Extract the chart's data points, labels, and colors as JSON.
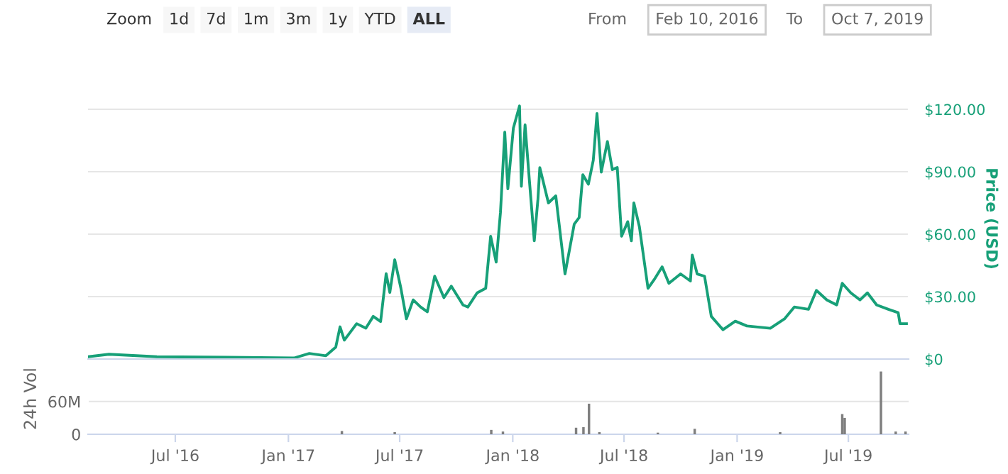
{
  "chart_data": [
    {
      "type": "line",
      "ylabel": "Price (USD)",
      "color": "#17a078",
      "grid": "y",
      "tick_labels": "y",
      "marker": "none",
      "line_style": "solid",
      "annotations": [
        "Zoom",
        "1d",
        "7d",
        "1m",
        "3m",
        "1y",
        "YTD",
        "ALL",
        "From",
        "Feb 10, 2016",
        "To",
        "Oct 7, 2019"
      ],
      "x": [
        "2016-02-10",
        "2016-03-15",
        "2016-06-01",
        "2016-09-23",
        "2017-01-10",
        "2017-02-04",
        "2017-03-03",
        "2017-03-19",
        "2017-03-26",
        "2017-04-02",
        "2017-04-22",
        "2017-05-07",
        "2017-05-19",
        "2017-05-31",
        "2017-06-09",
        "2017-06-15",
        "2017-06-23",
        "2017-07-03",
        "2017-07-12",
        "2017-07-23",
        "2017-08-04",
        "2017-08-15",
        "2017-08-27",
        "2017-09-11",
        "2017-09-23",
        "2017-10-12",
        "2017-10-20",
        "2017-11-04",
        "2017-11-18",
        "2017-11-26",
        "2017-12-05",
        "2017-12-12",
        "2017-12-19",
        "2017-12-24",
        "2018-01-02",
        "2018-01-12",
        "2018-01-15",
        "2018-01-21",
        "2018-01-28",
        "2018-02-05",
        "2018-02-11",
        "2018-02-14",
        "2018-02-28",
        "2018-03-12",
        "2018-03-27",
        "2018-04-11",
        "2018-04-19",
        "2018-04-25",
        "2018-05-04",
        "2018-05-12",
        "2018-05-18",
        "2018-05-25",
        "2018-06-04",
        "2018-06-12",
        "2018-06-20",
        "2018-06-27",
        "2018-07-07",
        "2018-07-13",
        "2018-07-17",
        "2018-07-26",
        "2018-08-09",
        "2018-08-20",
        "2018-09-01",
        "2018-09-12",
        "2018-10-01",
        "2018-10-17",
        "2018-10-20",
        "2018-10-28",
        "2018-11-09",
        "2018-11-20",
        "2018-12-09",
        "2018-12-29",
        "2019-01-17",
        "2019-02-24",
        "2019-03-19",
        "2019-04-04",
        "2019-04-27",
        "2019-05-10",
        "2019-05-27",
        "2019-06-12",
        "2019-06-21",
        "2019-07-05",
        "2019-07-20",
        "2019-08-01",
        "2019-08-16",
        "2019-09-04",
        "2019-09-20",
        "2019-09-23",
        "2019-10-01",
        "2019-10-07"
      ],
      "values": [
        1.1,
        2.3,
        1.1,
        0.9,
        0.5,
        2.7,
        1.6,
        5.7,
        15.5,
        9.1,
        17,
        14.8,
        20.5,
        18,
        41,
        32,
        47.7,
        34,
        19.3,
        28.4,
        25,
        22.7,
        39.8,
        29.5,
        35,
        26,
        25,
        31.8,
        34,
        59,
        46.6,
        70.5,
        109,
        81.8,
        111,
        121.6,
        83,
        112.5,
        86,
        56.8,
        77,
        92,
        75,
        78.4,
        40.9,
        64.8,
        68,
        88.6,
        84,
        95.5,
        118,
        89.8,
        104.5,
        91,
        92,
        59,
        66,
        56.8,
        75,
        63.6,
        34,
        38.6,
        44.3,
        36.4,
        40.9,
        37.5,
        50,
        40.9,
        39.8,
        20.5,
        14.1,
        18.2,
        15.9,
        14.8,
        19.3,
        25,
        23.9,
        33,
        28.4,
        26,
        36.4,
        31.8,
        28.4,
        31.8,
        26,
        23.9,
        22.3,
        17,
        17,
        17
      ],
      "xlim": [
        "2016-02-10",
        "2019-10-07"
      ],
      "ylim": [
        0,
        135
      ],
      "yticks": [
        {
          "value": 0,
          "label": "$0"
        },
        {
          "value": 30,
          "label": "$30.00"
        },
        {
          "value": 60,
          "label": "$60.00"
        },
        {
          "value": 90,
          "label": "$90.00"
        },
        {
          "value": 120,
          "label": "$120.00"
        }
      ]
    },
    {
      "type": "bar",
      "ylabel": "24h Vol",
      "color": "#7f7f7f",
      "grid": "y",
      "x": [
        "2017-03-29",
        "2017-06-23",
        "2017-11-27",
        "2017-12-16",
        "2018-04-14",
        "2018-04-26",
        "2018-05-05",
        "2018-05-22",
        "2018-08-25",
        "2018-10-24",
        "2019-03-12",
        "2019-06-21",
        "2019-06-25",
        "2019-08-23",
        "2019-09-16",
        "2019-10-02"
      ],
      "values": [
        6000000,
        4000000,
        8000000,
        5000000,
        12000000,
        13000000,
        56000000,
        4000000,
        3000000,
        10000000,
        4000000,
        37000000,
        30000000,
        115000000,
        5000000,
        5000000
      ],
      "xlim": [
        "2016-02-10",
        "2019-10-07"
      ],
      "ylim": [
        0,
        130000000
      ],
      "yticks": [
        0,
        {
          "value": 60000000,
          "label": "60M"
        }
      ],
      "xticks": [
        {
          "value": "2016-07-01",
          "label": "Jul '16"
        },
        {
          "value": "2017-01-01",
          "label": "Jan '17"
        },
        {
          "value": "2017-07-01",
          "label": "Jul '17"
        },
        {
          "value": "2018-01-01",
          "label": "Jan '18"
        },
        {
          "value": "2018-07-01",
          "label": "Jul '18"
        },
        {
          "value": "2019-01-01",
          "label": "Jan '19"
        },
        {
          "value": "2019-07-01",
          "label": "Jul '19"
        }
      ]
    }
  ]
}
